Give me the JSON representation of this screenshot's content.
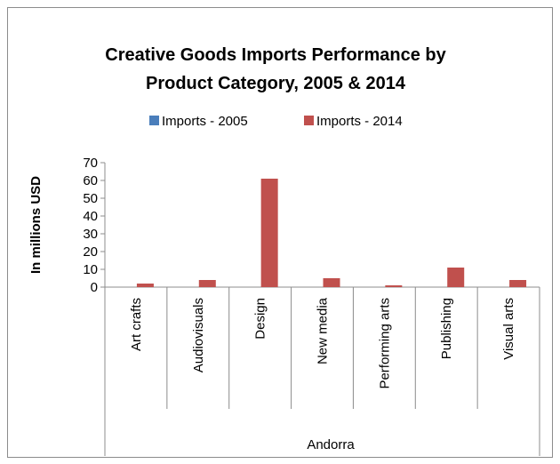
{
  "chart_data": {
    "type": "bar",
    "title_lines": [
      "Creative Goods Imports Performance by",
      "Product Category,  2005 & 2014"
    ],
    "ylabel": "In millions USD",
    "xgroup_label": "Andorra",
    "ylim": [
      0,
      70
    ],
    "yticks": [
      0,
      10,
      20,
      30,
      40,
      50,
      60,
      70
    ],
    "categories": [
      "Art crafts",
      "Audiovisuals",
      "Design",
      "New media",
      "Performing arts",
      "Publishing",
      "Visual arts"
    ],
    "series": [
      {
        "name": "Imports - 2005",
        "color": "#4a7ebb",
        "values": [
          0,
          0,
          0,
          0,
          0,
          0,
          0
        ]
      },
      {
        "name": "Imports - 2014",
        "color": "#c0504d",
        "values": [
          2,
          4,
          61,
          5,
          1,
          11,
          4
        ]
      }
    ],
    "legend_position": "top",
    "grid": false
  }
}
